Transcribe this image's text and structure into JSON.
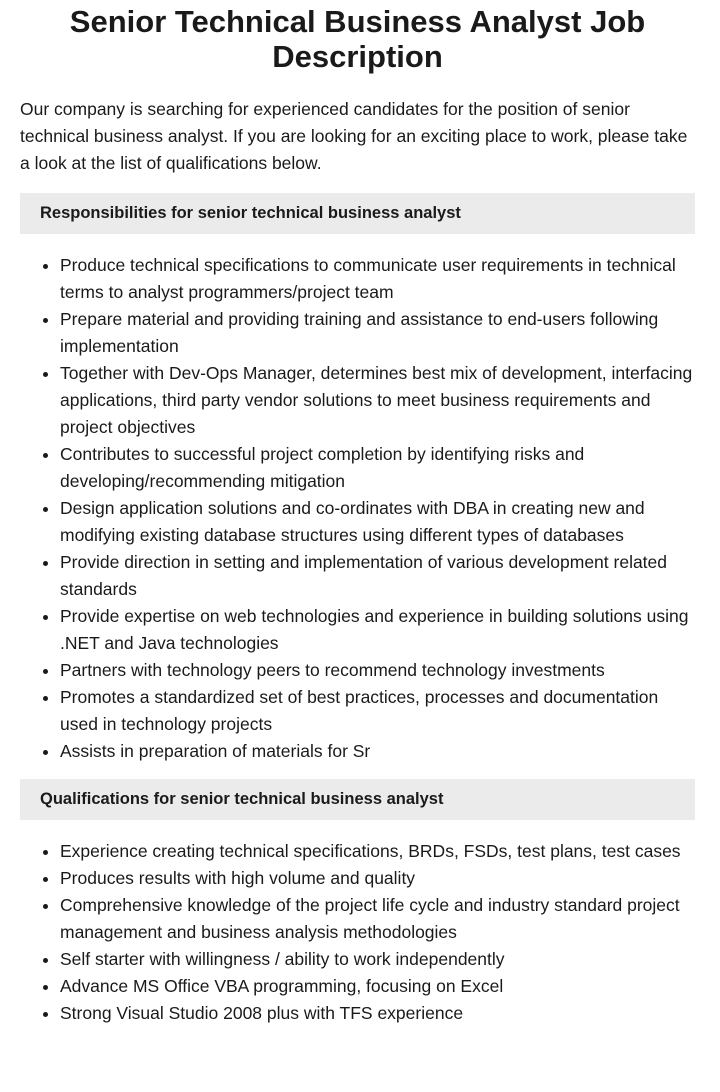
{
  "title": "Senior Technical Business Analyst Job Description",
  "intro": "Our company is searching for experienced candidates for the position of senior technical business analyst. If you are looking for an exciting place to work, please take a look at the list of qualifications below.",
  "sections": [
    {
      "heading": "Responsibilities for senior technical business analyst",
      "items": [
        "Produce technical specifications to communicate user requirements in technical terms to analyst programmers/project team",
        "Prepare material and providing training and assistance to end-users following implementation",
        "Together with Dev-Ops Manager, determines best mix of development, interfacing applications, third party vendor solutions to meet business requirements and project objectives",
        "Contributes to successful project completion by identifying risks and developing/recommending mitigation",
        "Design application solutions and co-ordinates with DBA in creating new and modifying existing database structures using different types of databases",
        "Provide direction in setting and implementation of various development related standards",
        "Provide expertise on web technologies and experience in building solutions using .NET and Java technologies",
        "Partners with technology peers to recommend technology investments",
        "Promotes a standardized set of best practices, processes and documentation used in technology projects",
        "Assists in preparation of materials for Sr"
      ]
    },
    {
      "heading": "Qualifications for senior technical business analyst",
      "items": [
        "Experience creating technical specifications, BRDs, FSDs, test plans, test cases",
        "Produces results with high volume and quality",
        "Comprehensive knowledge of the project life cycle and industry standard project management and business analysis methodologies",
        "Self starter with willingness / ability to work independently",
        "Advance MS Office VBA programming, focusing on Excel",
        "Strong Visual Studio 2008 plus with TFS experience"
      ]
    }
  ]
}
